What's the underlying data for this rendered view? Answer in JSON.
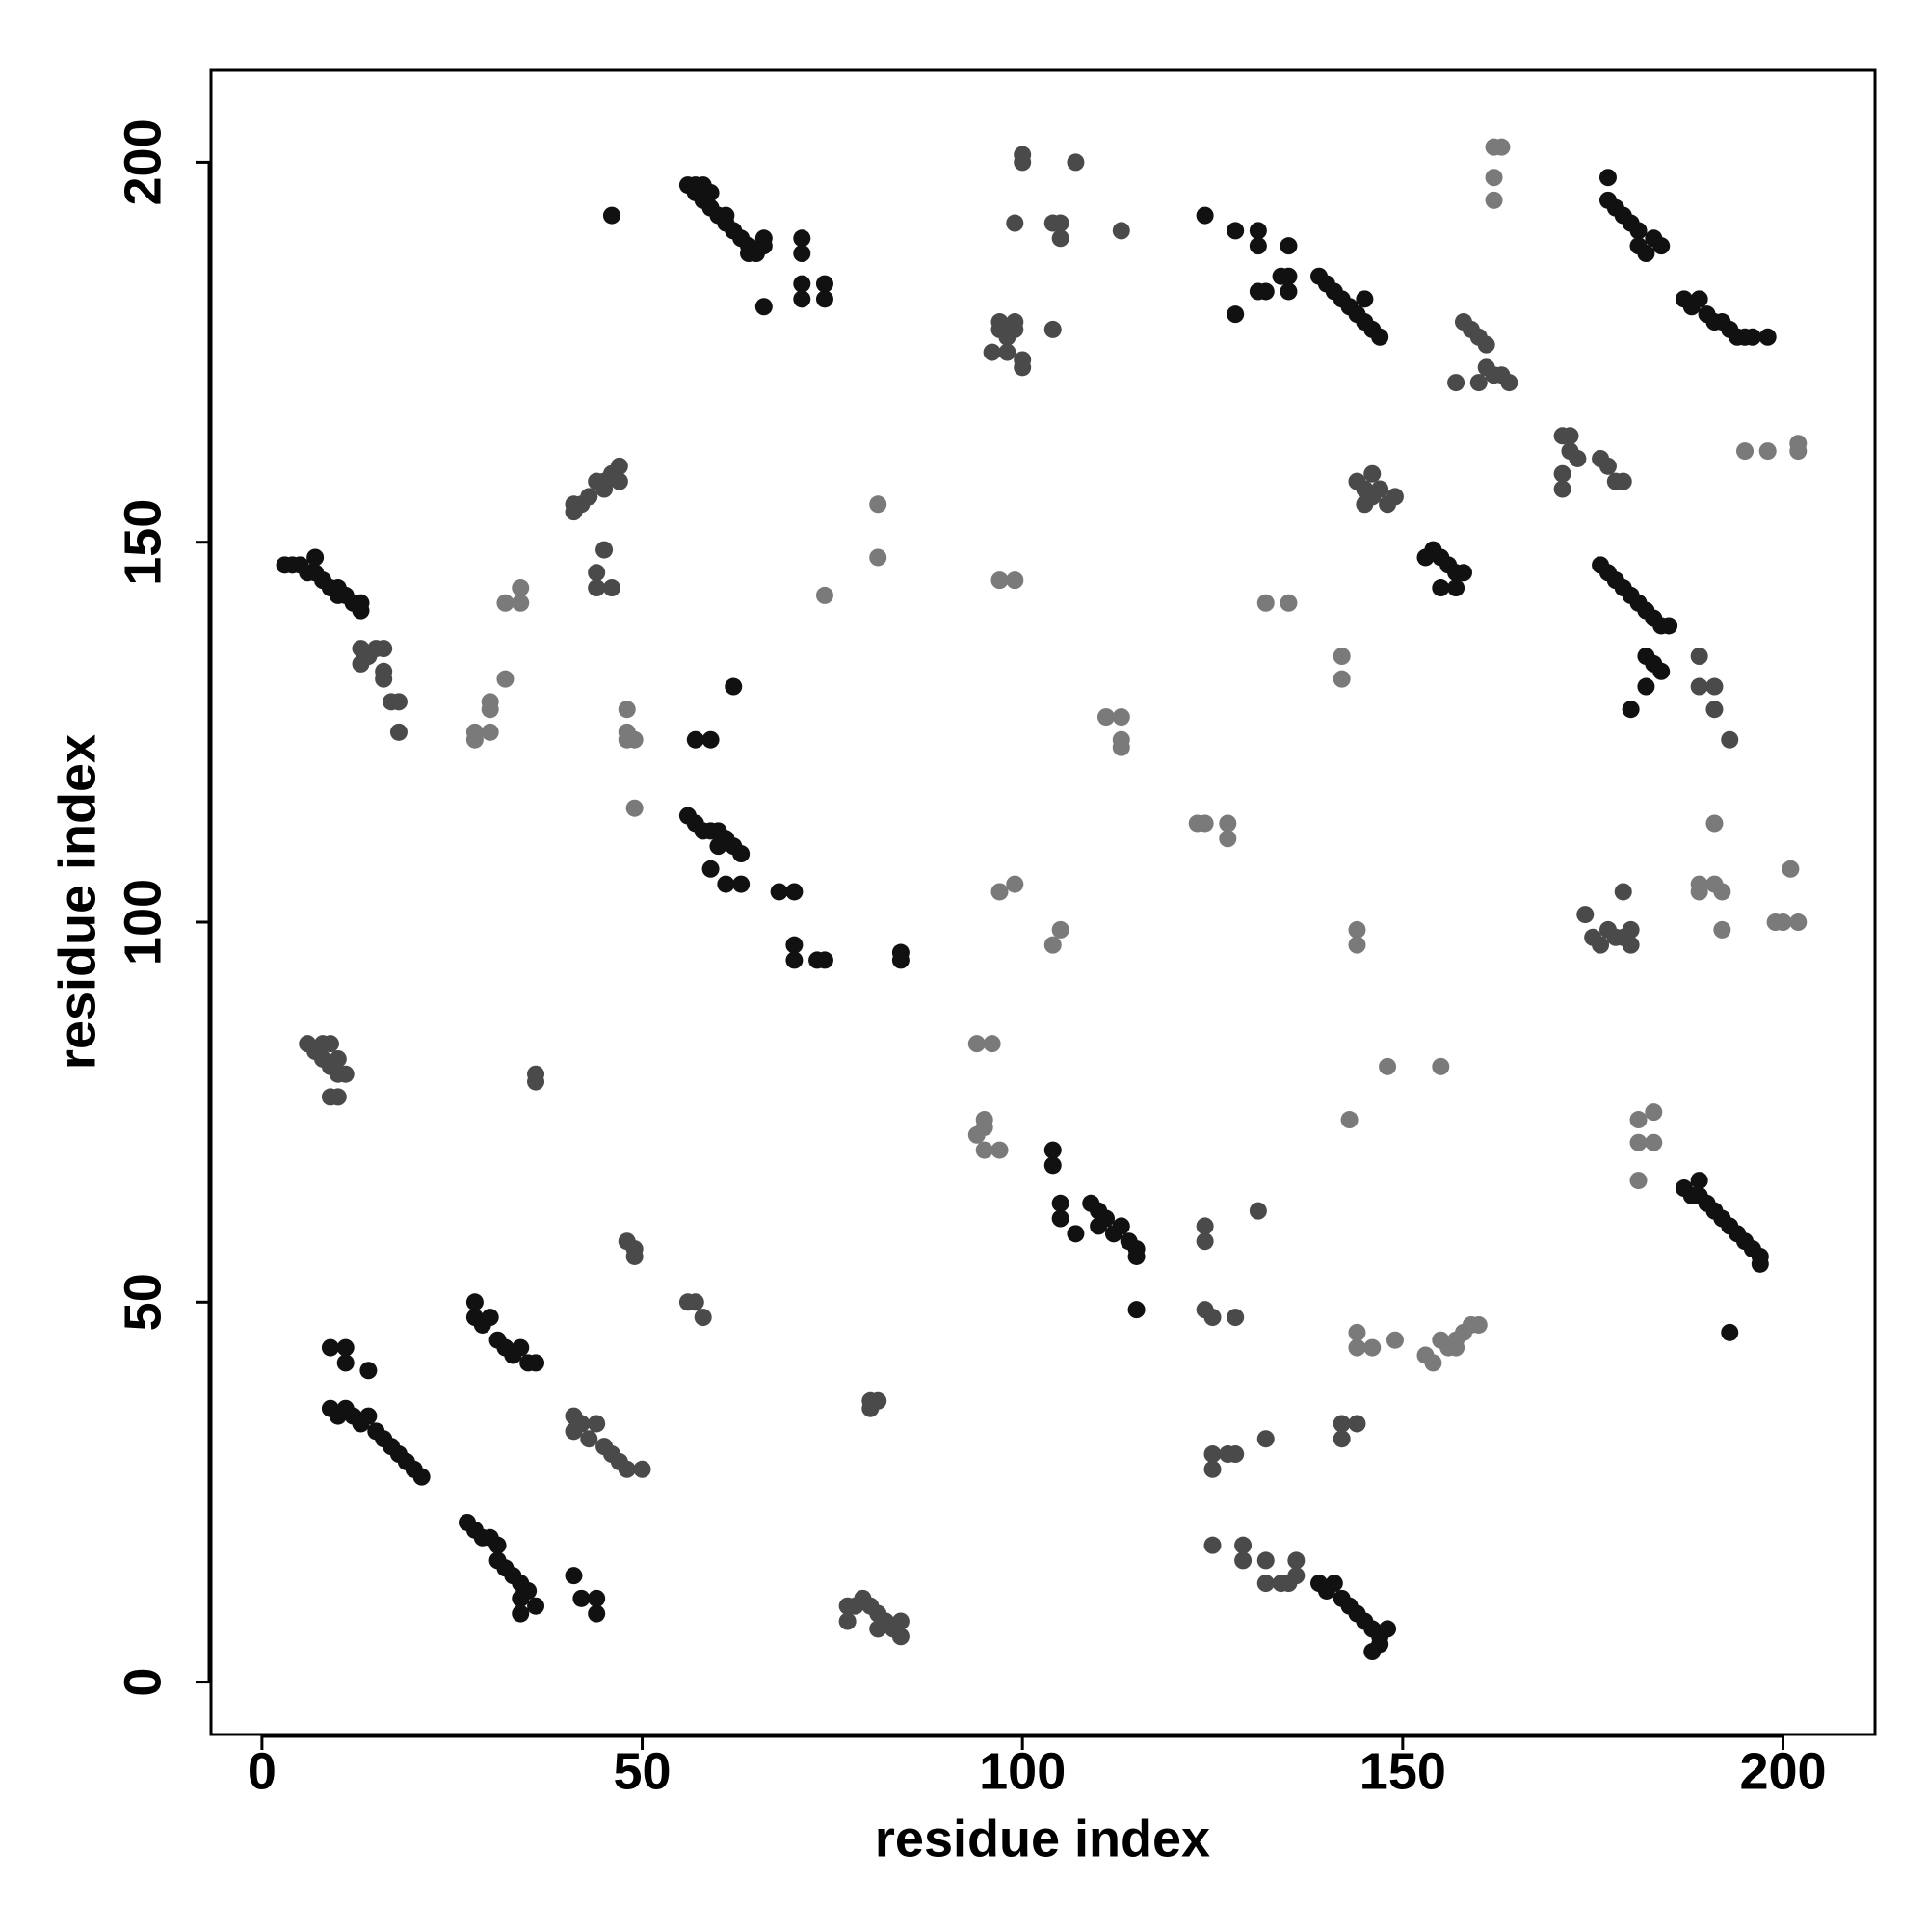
{
  "chart_data": {
    "type": "scatter",
    "x_label": "residue index",
    "y_label": "residue index",
    "xlim": [
      -6.7,
      212.1
    ],
    "ylim": [
      -6.9,
      212.1
    ],
    "xticks": [
      0,
      50,
      100,
      150,
      200
    ],
    "yticks": [
      0,
      50,
      100,
      150,
      200
    ],
    "grid": false,
    "series": [
      {
        "color": "#7a7a7a",
        "x": [
          28,
          28,
          30,
          30,
          30,
          32,
          32,
          34,
          34,
          48,
          48,
          48,
          49,
          49,
          94,
          95,
          95,
          95,
          97,
          94,
          96,
          97,
          99,
          81,
          81,
          74,
          97,
          99,
          104,
          105,
          111,
          113,
          113,
          113,
          123,
          124,
          127,
          127,
          132,
          135,
          142,
          142,
          148,
          155,
          143,
          162,
          163,
          162,
          162,
          181,
          181,
          183,
          183,
          181,
          189,
          189,
          191,
          192,
          192,
          191,
          201,
          199,
          200,
          202,
          195,
          198,
          202,
          202,
          144,
          144,
          144,
          144,
          146,
          149,
          153,
          154,
          155,
          156,
          157,
          158,
          159,
          160,
          157
        ],
        "values": [
          125,
          124,
          125,
          129,
          128,
          132,
          142,
          142,
          144,
          124,
          125,
          128,
          124,
          115,
          84,
          74,
          73,
          70,
          70,
          72,
          84,
          145,
          145,
          155,
          148,
          143,
          104,
          105,
          97,
          99,
          127,
          127,
          124,
          123,
          113,
          113,
          113,
          111,
          142,
          142,
          135,
          132,
          81,
          81,
          74,
          202,
          202,
          198,
          195,
          74,
          71,
          75,
          71,
          66,
          105,
          104,
          105,
          104,
          99,
          113,
          107,
          100,
          100,
          100,
          162,
          162,
          163,
          162,
          99,
          97,
          46,
          44,
          44,
          45,
          43,
          42,
          45,
          44,
          45,
          46,
          47,
          47,
          44
        ]
      },
      {
        "color": "#4a4a4a",
        "x": [
          13,
          13,
          14,
          15,
          16,
          16,
          16,
          17,
          18,
          18,
          41,
          41,
          42,
          43,
          44,
          45,
          45,
          46,
          47,
          47,
          44,
          44,
          45,
          46,
          6,
          7,
          8,
          8,
          9,
          9,
          10,
          10,
          11,
          9,
          10,
          36,
          36,
          41,
          41,
          42,
          43,
          44,
          45,
          46,
          47,
          48,
          50,
          48,
          49,
          49,
          56,
          57,
          58,
          77,
          77,
          78,
          79,
          80,
          81,
          81,
          82,
          83,
          84,
          84,
          80,
          80,
          81,
          96,
          97,
          97,
          98,
          99,
          99,
          100,
          100,
          98,
          99,
          100,
          100,
          104,
          104,
          105,
          105,
          107,
          113,
          144,
          145,
          146,
          146,
          147,
          148,
          149,
          145,
          158,
          159,
          160,
          161,
          161,
          162,
          163,
          164,
          157,
          160,
          171,
          172,
          172,
          173,
          171,
          171,
          176,
          177,
          178,
          179,
          174,
          175,
          176,
          177,
          178,
          179,
          180,
          180,
          179,
          189,
          189,
          191,
          191,
          193,
          142,
          142,
          144,
          124,
          124,
          124,
          125,
          128,
          131,
          125,
          125,
          127,
          128,
          132,
          125,
          129,
          129,
          132,
          132,
          134,
          135,
          136,
          136
        ],
        "values": [
          136,
          134,
          135,
          136,
          133,
          136,
          132,
          129,
          129,
          125,
          154,
          155,
          155,
          156,
          158,
          158,
          157,
          159,
          160,
          158,
          144,
          146,
          149,
          144,
          84,
          83,
          84,
          82,
          84,
          81,
          82,
          80,
          80,
          77,
          77,
          80,
          79,
          35,
          33,
          34,
          32,
          34,
          31,
          30,
          29,
          28,
          28,
          58,
          57,
          56,
          50,
          50,
          48,
          10,
          8,
          10,
          11,
          10,
          9,
          7,
          8,
          7,
          8,
          6,
          37,
          36,
          37,
          175,
          178,
          179,
          177,
          178,
          179,
          174,
          173,
          175,
          192,
          200,
          201,
          192,
          178,
          190,
          192,
          200,
          191,
          158,
          157,
          159,
          156,
          157,
          155,
          156,
          155,
          179,
          178,
          177,
          176,
          173,
          172,
          172,
          171,
          171,
          171,
          164,
          164,
          162,
          161,
          159,
          157,
          161,
          160,
          158,
          158,
          101,
          98,
          97,
          99,
          98,
          98,
          99,
          97,
          104,
          135,
          131,
          131,
          128,
          124,
          34,
          32,
          34,
          60,
          58,
          49,
          48,
          48,
          62,
          30,
          28,
          30,
          30,
          32,
          18,
          18,
          16,
          16,
          13,
          13,
          13,
          16,
          14
        ]
      },
      {
        "color": "#111111",
        "x": [
          3,
          4,
          5,
          6,
          7,
          7,
          8,
          9,
          10,
          10,
          11,
          12,
          13,
          13,
          56,
          57,
          57,
          58,
          58,
          59,
          59,
          60,
          61,
          61,
          62,
          63,
          64,
          64,
          65,
          66,
          66,
          46,
          66,
          71,
          71,
          71,
          71,
          74,
          74,
          56,
          57,
          58,
          59,
          60,
          60,
          61,
          62,
          63,
          59,
          61,
          63,
          57,
          59,
          62,
          68,
          70,
          70,
          70,
          73,
          74,
          84,
          84,
          9,
          10,
          11,
          12,
          13,
          14,
          15,
          16,
          17,
          18,
          19,
          20,
          21,
          9,
          11,
          11,
          14,
          27,
          28,
          29,
          30,
          31,
          31,
          32,
          33,
          34,
          35,
          34,
          36,
          34,
          41,
          42,
          44,
          44,
          28,
          28,
          29,
          30,
          31,
          32,
          33,
          34,
          35,
          36,
          104,
          104,
          105,
          105,
          107,
          109,
          110,
          110,
          111,
          112,
          113,
          114,
          115,
          115,
          115,
          124,
          128,
          131,
          131,
          135,
          131,
          132,
          134,
          135,
          135,
          128,
          139,
          140,
          141,
          142,
          143,
          144,
          145,
          146,
          147,
          145,
          153,
          154,
          155,
          156,
          157,
          158,
          155,
          157,
          176,
          177,
          178,
          179,
          180,
          181,
          182,
          183,
          184,
          185,
          182,
          183,
          184,
          182,
          180,
          177,
          177,
          178,
          179,
          180,
          181,
          181,
          182,
          183,
          184,
          187,
          188,
          189,
          190,
          191,
          192,
          193,
          194,
          195,
          196,
          198,
          187,
          188,
          189,
          189,
          190,
          191,
          192,
          193,
          194,
          195,
          196,
          197,
          197,
          193,
          139,
          140,
          141,
          142,
          143,
          144,
          145,
          146,
          147,
          148,
          147,
          146
        ],
        "values": [
          147,
          147,
          147,
          146,
          146,
          148,
          145,
          144,
          144,
          143,
          143,
          142,
          141,
          142,
          197,
          197,
          196,
          195,
          197,
          194,
          196,
          193,
          193,
          192,
          191,
          190,
          189,
          188,
          188,
          190,
          189,
          193,
          181,
          190,
          188,
          184,
          182,
          184,
          182,
          114,
          113,
          112,
          112,
          112,
          110,
          111,
          110,
          109,
          107,
          105,
          105,
          124,
          124,
          131,
          104,
          104,
          97,
          95,
          95,
          95,
          96,
          95,
          36,
          35,
          36,
          35,
          34,
          35,
          33,
          32,
          31,
          30,
          29,
          28,
          27,
          44,
          44,
          42,
          41,
          21,
          20,
          19,
          19,
          18,
          16,
          15,
          14,
          13,
          12,
          11,
          10,
          9,
          14,
          11,
          11,
          9,
          50,
          48,
          47,
          48,
          45,
          44,
          43,
          44,
          42,
          42,
          70,
          68,
          63,
          61,
          59,
          63,
          62,
          60,
          61,
          59,
          60,
          58,
          57,
          56,
          49,
          193,
          191,
          191,
          189,
          189,
          183,
          183,
          185,
          185,
          183,
          180,
          185,
          184,
          183,
          182,
          181,
          180,
          179,
          178,
          177,
          182,
          148,
          149,
          148,
          147,
          146,
          146,
          144,
          144,
          147,
          146,
          145,
          144,
          143,
          142,
          141,
          140,
          139,
          139,
          135,
          134,
          133,
          131,
          128,
          198,
          195,
          194,
          193,
          192,
          191,
          189,
          188,
          190,
          189,
          182,
          181,
          182,
          180,
          179,
          179,
          178,
          177,
          177,
          177,
          177,
          65,
          64,
          64,
          66,
          63,
          62,
          61,
          60,
          59,
          58,
          57,
          56,
          55,
          46,
          13,
          12,
          13,
          11,
          10,
          9,
          8,
          7,
          6,
          7,
          5,
          4
        ]
      }
    ]
  }
}
